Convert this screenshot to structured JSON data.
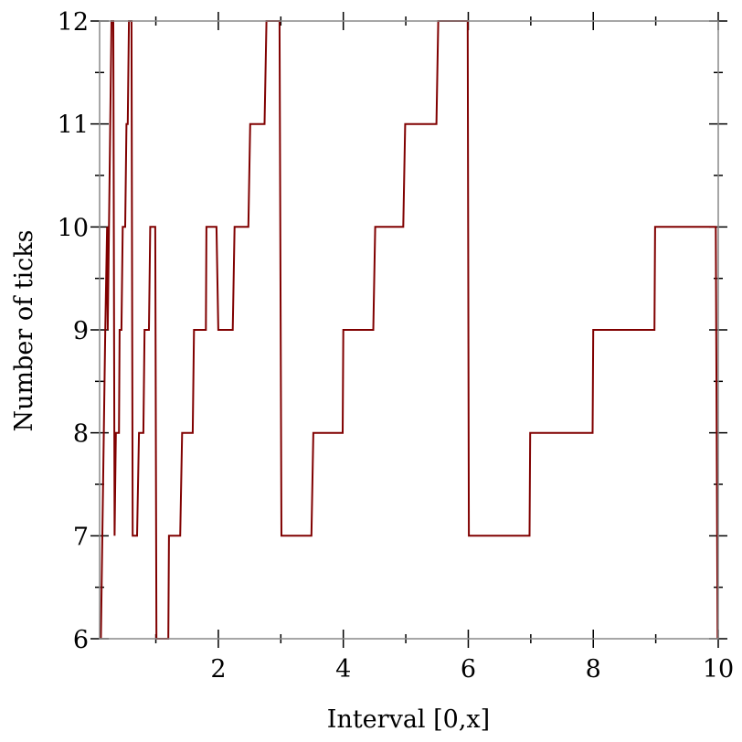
{
  "chart_data": {
    "type": "line",
    "title": "",
    "xlabel": "Interval [0,x]",
    "ylabel": "Number of ticks",
    "xlim": [
      0.1,
      10
    ],
    "ylim": [
      6,
      12
    ],
    "xticks": [
      2,
      4,
      6,
      8,
      10
    ],
    "xtick_labels": [
      "2",
      "4",
      "6",
      "8",
      "10"
    ],
    "xminor": [
      1,
      3,
      5,
      7,
      9
    ],
    "yticks": [
      6,
      7,
      8,
      9,
      10,
      11,
      12
    ],
    "ytick_labels": [
      "6",
      "7",
      "8",
      "9",
      "10",
      "11",
      "12"
    ],
    "yminor": [
      6.5,
      7.5,
      8.5,
      9.5,
      10.5,
      11.5
    ],
    "grid": false,
    "line_color": "#800000",
    "series": [
      {
        "x": [
          0.12,
          0.19,
          0.22,
          0.23,
          0.29,
          0.32,
          0.34,
          0.36,
          0.41,
          0.42,
          0.45,
          0.47,
          0.51,
          0.53,
          0.55,
          0.57,
          0.61,
          0.63,
          0.7,
          0.73,
          0.8,
          0.82,
          0.89,
          0.91,
          0.99,
          1.01,
          1.2,
          1.21,
          1.39,
          1.42,
          1.59,
          1.61,
          1.8,
          1.81,
          1.97,
          2.0,
          2.23,
          2.26,
          2.48,
          2.51,
          2.74,
          2.77,
          2.98,
          3.01,
          3.49,
          3.52,
          3.99,
          4.0,
          4.48,
          4.51,
          4.96,
          4.99,
          5.49,
          5.52,
          5.99,
          6.01,
          6.98,
          6.99,
          7.99,
          8.0,
          8.98,
          8.99,
          9.96,
          9.99
        ],
        "y": [
          6,
          9,
          10,
          9,
          12,
          12,
          7,
          8,
          8,
          9,
          9,
          10,
          10,
          11,
          11,
          12,
          12,
          7,
          7,
          8,
          8,
          9,
          9,
          10,
          10,
          6,
          6,
          7,
          7,
          8,
          8,
          9,
          9,
          10,
          10,
          9,
          9,
          10,
          10,
          11,
          11,
          12,
          12,
          7,
          7,
          8,
          8,
          9,
          9,
          10,
          10,
          11,
          11,
          12,
          12,
          7,
          7,
          8,
          8,
          9,
          9,
          10,
          10,
          6
        ]
      }
    ]
  }
}
